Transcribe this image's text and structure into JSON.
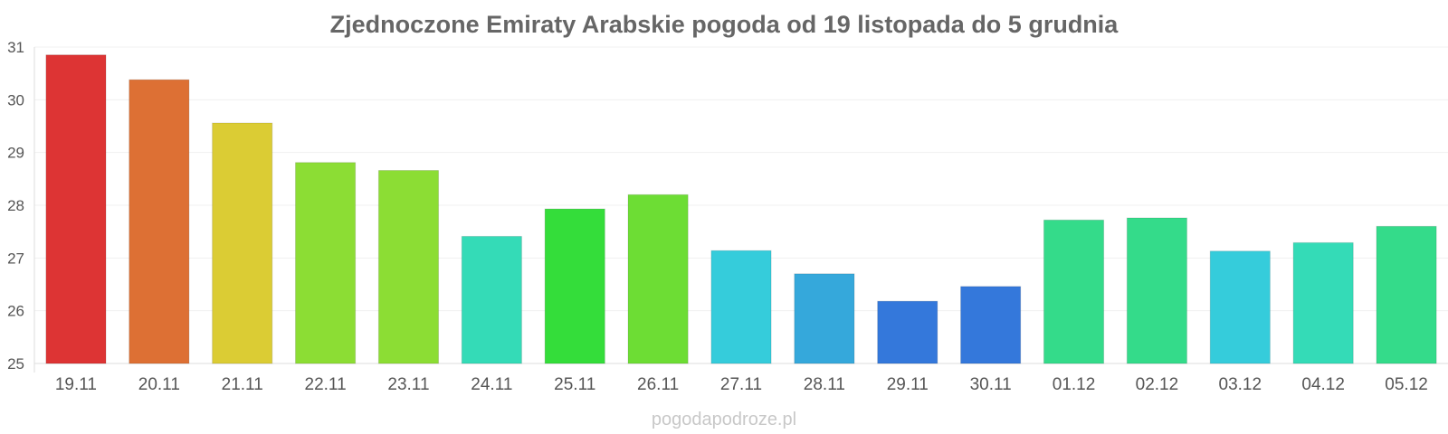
{
  "chart_data": {
    "type": "bar",
    "title": "Zjednoczone Emiraty Arabskie pogoda od 19 listopada do 5 grudnia",
    "xlabel": "",
    "ylabel": "",
    "ylim": [
      25,
      31
    ],
    "yticks": [
      "25",
      "26",
      "27",
      "28",
      "29",
      "30",
      "31"
    ],
    "grid": true,
    "categories": [
      "19.11",
      "20.11",
      "21.11",
      "22.11",
      "23.11",
      "24.11",
      "25.11",
      "26.11",
      "27.11",
      "28.11",
      "29.11",
      "30.11",
      "01.12",
      "02.12",
      "03.12",
      "04.12",
      "05.12"
    ],
    "values": [
      30.85,
      30.38,
      29.56,
      28.81,
      28.66,
      27.41,
      27.93,
      28.2,
      27.14,
      26.7,
      26.18,
      26.46,
      27.72,
      27.76,
      27.13,
      27.29,
      27.6
    ],
    "colors": [
      "#dd3434",
      "#dd7034",
      "#dbcc34",
      "#8cdd34",
      "#8cdd34",
      "#34dbb7",
      "#34dd3a",
      "#6ddd34",
      "#35ccdb",
      "#35a8db",
      "#3478db",
      "#3478db",
      "#34db8a",
      "#34db8a",
      "#35ccdb",
      "#34dbb7",
      "#34db8a"
    ]
  },
  "watermark": "pogodapodroze.pl"
}
